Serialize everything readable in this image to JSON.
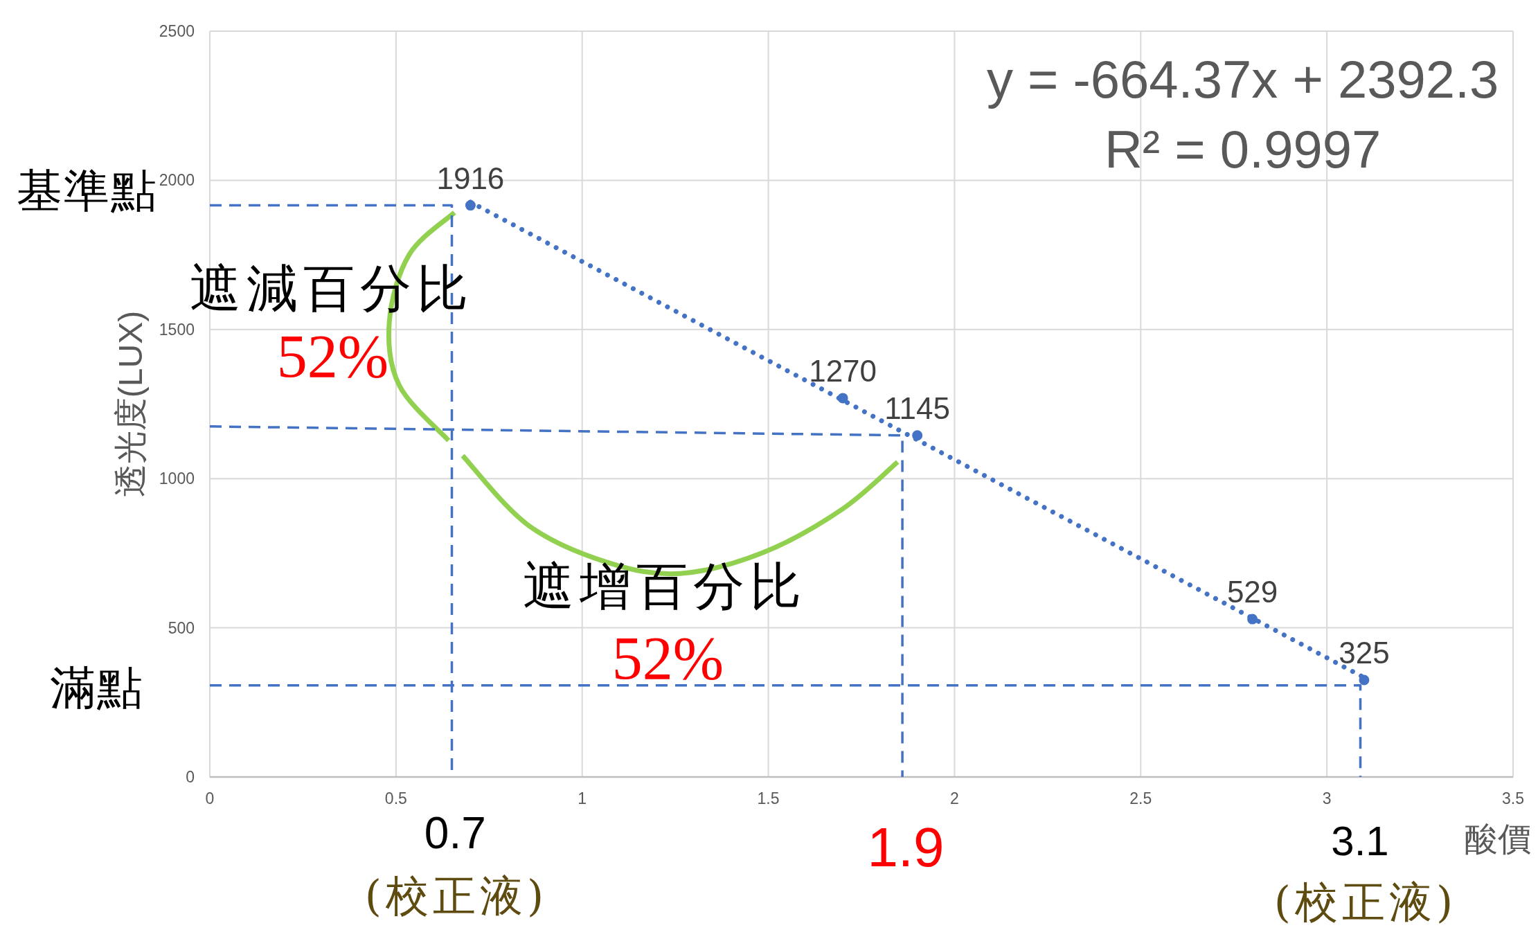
{
  "chart_data": {
    "type": "scatter",
    "xlabel": "酸價",
    "ylabel": "透光度(LUX)",
    "xlim": [
      0,
      3.5
    ],
    "xticks": [
      0,
      0.5,
      1,
      1.5,
      2,
      2.5,
      3,
      3.5
    ],
    "ylim": [
      0,
      2500
    ],
    "yticks": [
      0,
      500,
      1000,
      1500,
      2000,
      2500
    ],
    "grid": true,
    "series": [
      {
        "marker": "circle",
        "color": "#4472c4",
        "x": [
          0.7,
          1.7,
          1.9,
          2.8,
          3.1
        ],
        "values": [
          1916,
          1270,
          1145,
          529,
          325
        ],
        "value_labels": [
          "1916",
          "1270",
          "1145",
          "529",
          "325"
        ]
      },
      {
        "type": "line",
        "line_style": "dotted",
        "color": "#4472c4",
        "x": [
          0.7,
          3.1
        ],
        "values": [
          1927,
          333
        ]
      },
      {
        "type": "line",
        "line_style": "dashed",
        "color": "#4472c4",
        "x": [
          0,
          0.65,
          0.65
        ],
        "values": [
          1916,
          1916,
          0
        ]
      },
      {
        "type": "line",
        "line_style": "dashed",
        "color": "#4472c4",
        "x": [
          0,
          1.86,
          1.86
        ],
        "values": [
          1175,
          1145,
          0
        ]
      },
      {
        "type": "line",
        "line_style": "dashed",
        "color": "#4472c4",
        "x": [
          0,
          3.09,
          3.09
        ],
        "values": [
          307,
          307,
          0
        ]
      }
    ],
    "annotations": [
      "y = -664.37x + 2392.3",
      "R² = 0.9997",
      "基準點",
      "遮減百分比",
      "52%",
      "遮增百分比",
      "52%",
      "滿點",
      "0.7",
      "1.9",
      "3.1",
      "(校正液)",
      "(校正液)"
    ]
  }
}
